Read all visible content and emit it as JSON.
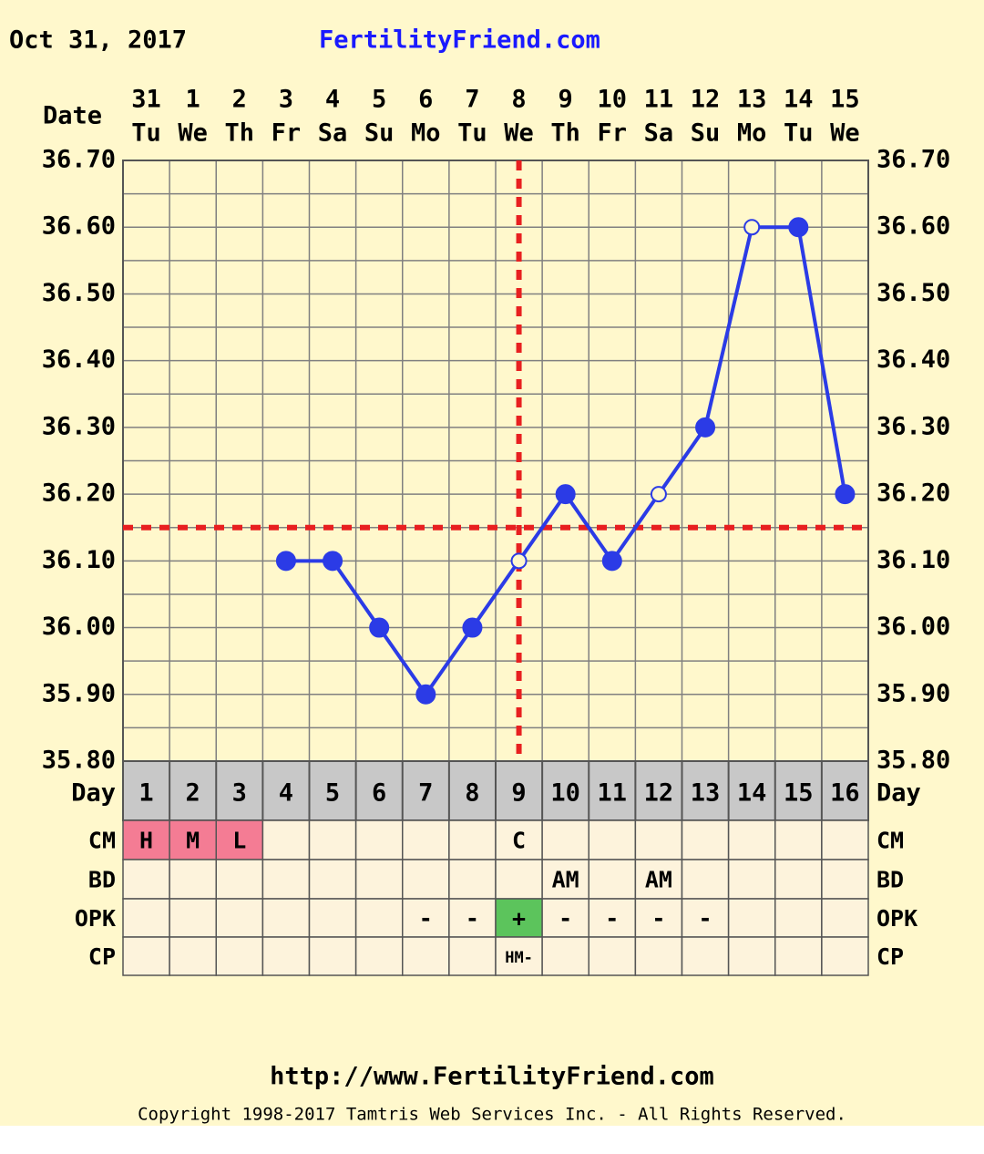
{
  "chart_data": {
    "type": "line",
    "date": "Oct 31, 2017",
    "site": "FertilityFriend.com",
    "x_label": "Date",
    "categories": [
      "31",
      "1",
      "2",
      "3",
      "4",
      "5",
      "6",
      "7",
      "8",
      "9",
      "10",
      "11",
      "12",
      "13",
      "14",
      "15"
    ],
    "weekdays": [
      "Tu",
      "We",
      "Th",
      "Fr",
      "Sa",
      "Su",
      "Mo",
      "Tu",
      "We",
      "Th",
      "Fr",
      "Sa",
      "Su",
      "Mo",
      "Tu",
      "We"
    ],
    "values": [
      null,
      null,
      null,
      36.1,
      36.1,
      36.0,
      35.9,
      36.0,
      36.1,
      36.2,
      36.1,
      36.2,
      36.3,
      36.6,
      36.6,
      36.2
    ],
    "open_points": [
      8,
      11,
      13
    ],
    "color": "#2b3be6",
    "ylim": [
      35.8,
      36.7
    ],
    "yticks": [
      {
        "value": 35.8,
        "label": "35.80"
      },
      {
        "value": 35.9,
        "label": "35.90"
      },
      {
        "value": 36.0,
        "label": "36.00"
      },
      {
        "value": 36.1,
        "label": "36.10"
      },
      {
        "value": 36.2,
        "label": "36.20"
      },
      {
        "value": 36.3,
        "label": "36.30"
      },
      {
        "value": 36.4,
        "label": "36.40"
      },
      {
        "value": 36.5,
        "label": "36.50"
      },
      {
        "value": 36.6,
        "label": "36.60"
      },
      {
        "value": 36.7,
        "label": "36.70"
      }
    ],
    "grid": true,
    "coverline": 36.15,
    "ovulation_day": 9,
    "day_label": "Day",
    "days": [
      1,
      2,
      3,
      4,
      5,
      6,
      7,
      8,
      9,
      10,
      11,
      12,
      13,
      14,
      15,
      16
    ],
    "rows": [
      {
        "label": "CM",
        "cells": [
          "H",
          "M",
          "L",
          null,
          null,
          null,
          null,
          null,
          "C",
          null,
          null,
          null,
          null,
          null,
          null,
          null
        ]
      },
      {
        "label": "BD",
        "cells": [
          null,
          null,
          null,
          null,
          null,
          null,
          null,
          null,
          null,
          "AM",
          null,
          "AM",
          null,
          null,
          null,
          null
        ]
      },
      {
        "label": "OPK",
        "cells": [
          null,
          null,
          null,
          null,
          null,
          null,
          "-",
          "-",
          "+",
          "-",
          "-",
          "-",
          "-",
          null,
          null,
          null
        ]
      },
      {
        "label": "CP",
        "cells": [
          null,
          null,
          null,
          null,
          null,
          null,
          null,
          null,
          "HM-",
          null,
          null,
          null,
          null,
          null,
          null,
          null
        ]
      }
    ],
    "highlight_colors": {
      "H": "#f47c94",
      "M": "#f47c94",
      "L": "#f47c94",
      "+": "#5cc45c"
    },
    "url": "http://www.FertilityFriend.com",
    "copyright": "Copyright 1998-2017 Tamtris Web Services Inc. - All Rights Reserved."
  }
}
